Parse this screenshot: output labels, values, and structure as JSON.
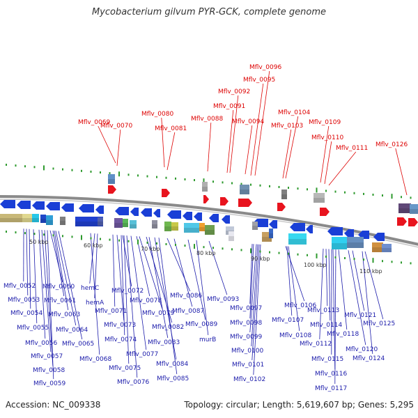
{
  "title": "Mycobacterium gilvum PYR-GCK, complete genome",
  "footer": {
    "accession": "Accession: NC_009338",
    "topology": "Topology: circular; Length: 5,619,607 bp; Genes: 5,295"
  },
  "colors": {
    "top_label": "#dd0000",
    "bottom_label": "#1a1aaa",
    "reverse_arrow": "#1a3fd6",
    "forward_arrow": "#e8141e",
    "tick": "#2e9a2e",
    "backbone": "#888888"
  },
  "scale_labels": [
    "50 kbp",
    "60 kbp",
    "70 kbp",
    "80 kbp",
    "90 kbp",
    "100 kbp",
    "110 kbp"
  ],
  "top_genes": [
    "Mflv_0069",
    "Mflv_0070",
    "Mflv_0080",
    "Mflv_0081",
    "Mflv_0088",
    "Mflv_0091",
    "Mflv_0092",
    "Mflv_0094",
    "Mflv_0095",
    "Mflv_0096",
    "Mflv_0103",
    "Mflv_0104",
    "Mflv_0109",
    "Mflv_0110",
    "Mflv_0111",
    "Mflv_0126"
  ],
  "bottom_genes": [
    "Mflv_0052",
    "Mflv_0053",
    "Mflv_0054",
    "Mflv_0055",
    "Mflv_0056",
    "Mflv_0057",
    "Mflv_0058",
    "Mflv_0059",
    "Mflv_0060",
    "Mflv_0061",
    "Mflv_0063",
    "Mflv_0064",
    "Mflv_0065",
    "Mflv_0068",
    "hemC",
    "hemA",
    "Mflv_0071",
    "Mflv_0072",
    "Mflv_0073",
    "Mflv_0074",
    "Mflv_0075",
    "Mflv_0076",
    "Mflv_0077",
    "Mflv_0078",
    "Mflv_0079",
    "Mflv_0082",
    "Mflv_0083",
    "Mflv_0084",
    "Mflv_0085",
    "Mflv_0086",
    "Mflv_0087",
    "Mflv_0089",
    "murB",
    "Mflv_0093",
    "Mflv_0097",
    "Mflv_0098",
    "Mflv_0099",
    "Mflv_0100",
    "Mflv_0101",
    "Mflv_0102",
    "Mflv_0106",
    "Mflv_0107",
    "Mflv_0108",
    "Mflv_0112",
    "Mflv_0113",
    "Mflv_0114",
    "Mflv_0115",
    "Mflv_0116",
    "Mflv_0117",
    "Mflv_0118",
    "Mflv_0120",
    "Mflv_0121",
    "Mflv_0124",
    "Mflv_0125"
  ]
}
